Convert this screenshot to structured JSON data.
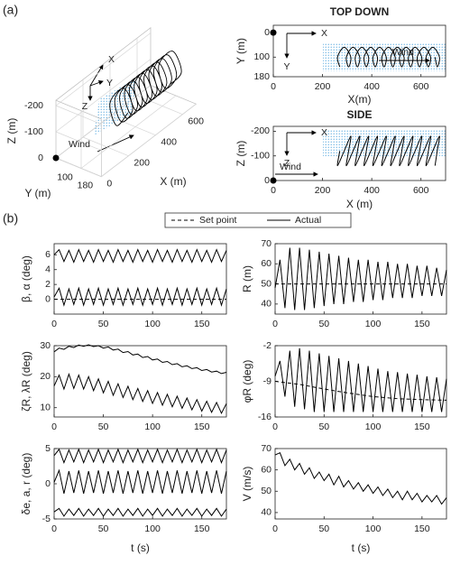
{
  "labels": [
    "(a)",
    "(b)"
  ],
  "legend": [
    {
      "name": "Set point",
      "style": "dashed"
    },
    {
      "name": "Actual",
      "style": "solid"
    }
  ],
  "chart_data": [
    {
      "type": "line3d",
      "xlabel": "X (m)",
      "ylabel": "Y (m)",
      "zlabel": "Z (m)",
      "xlim": [
        0,
        700
      ],
      "xticks": [
        0,
        200,
        400,
        600
      ],
      "ylim": [
        0,
        180
      ],
      "yticks": [
        100,
        180
      ],
      "zlim": [
        -220,
        0
      ],
      "zticks": [
        -200,
        -100,
        0
      ],
      "color": "#000000",
      "marker": [
        0,
        0,
        0
      ],
      "annotations": [
        "Wind",
        "X",
        "Y",
        "Z"
      ],
      "x": [
        270,
        261,
        288,
        315,
        306,
        297,
        324,
        351,
        342,
        333,
        360,
        387,
        378,
        369,
        396,
        423,
        414,
        405,
        432,
        459,
        450,
        441,
        468,
        495,
        486,
        477,
        504,
        531,
        522,
        513,
        540,
        567,
        558,
        549,
        576,
        603,
        594,
        585,
        612,
        639,
        630,
        621,
        648,
        675,
        666,
        657
      ],
      "y": [
        140,
        100,
        60,
        100,
        140,
        100,
        60,
        100,
        140,
        100,
        60,
        100,
        140,
        100,
        60,
        100,
        140,
        100,
        60,
        100,
        140,
        100,
        60,
        100,
        140,
        100,
        60,
        100,
        140,
        100,
        60,
        100,
        140,
        100,
        60,
        100,
        140,
        100,
        60,
        100,
        140,
        100,
        60,
        100,
        140,
        100
      ],
      "z": [
        -120,
        -60,
        -120,
        -180,
        -120,
        -60,
        -120,
        -180,
        -120,
        -60,
        -120,
        -180,
        -120,
        -60,
        -120,
        -180,
        -120,
        -60,
        -120,
        -180,
        -120,
        -60,
        -120,
        -180,
        -120,
        -60,
        -120,
        -180,
        -120,
        -60,
        -120,
        -180,
        -120,
        -60,
        -120,
        -180,
        -120,
        -60,
        -120,
        -180,
        -120,
        -60,
        -120,
        -180,
        -120,
        -60
      ]
    },
    {
      "type": "line",
      "title": "TOP DOWN",
      "xlabel": "X(m)",
      "ylabel": "Y (m)",
      "smooth": true,
      "xlim": [
        0,
        700
      ],
      "xticks": [
        0,
        200,
        400,
        600
      ],
      "ylim": [
        -30,
        180
      ],
      "yticks": [
        0,
        100,
        180
      ],
      "y_reversed": true,
      "marker": [
        0,
        0
      ],
      "annotations": [
        "Wind",
        "X",
        "Y"
      ],
      "x": [
        270,
        261,
        288,
        315,
        306,
        297,
        324,
        351,
        342,
        333,
        360,
        387,
        378,
        369,
        396,
        423,
        414,
        405,
        432,
        459,
        450,
        441,
        468,
        495,
        486,
        477,
        504,
        531,
        522,
        513,
        540,
        567,
        558,
        549,
        576,
        603,
        594,
        585,
        612,
        639,
        630,
        621,
        648,
        675,
        666,
        657
      ],
      "series": [
        {
          "style": "solid",
          "color": "#000000",
          "values": [
            140,
            100,
            60,
            100,
            140,
            100,
            60,
            100,
            140,
            100,
            60,
            100,
            140,
            100,
            60,
            100,
            140,
            100,
            60,
            100,
            140,
            100,
            60,
            100,
            140,
            100,
            60,
            100,
            140,
            100,
            60,
            100,
            140,
            100,
            60,
            100,
            140,
            100,
            60,
            100,
            140,
            100,
            60,
            100,
            140,
            100
          ]
        }
      ]
    },
    {
      "type": "line",
      "title": "SIDE",
      "xlabel": "X (m)",
      "ylabel": "Z (m)",
      "smooth": true,
      "xlim": [
        0,
        700
      ],
      "xticks": [
        0,
        200,
        400,
        600
      ],
      "ylim": [
        -220,
        0
      ],
      "yticks": [
        -200,
        -100,
        0
      ],
      "y_reversed": true,
      "marker": [
        0,
        0
      ],
      "annotations": [
        "Wind",
        "X",
        "Z"
      ],
      "x": [
        270,
        261,
        288,
        315,
        306,
        297,
        324,
        351,
        342,
        333,
        360,
        387,
        378,
        369,
        396,
        423,
        414,
        405,
        432,
        459,
        450,
        441,
        468,
        495,
        486,
        477,
        504,
        531,
        522,
        513,
        540,
        567,
        558,
        549,
        576,
        603,
        594,
        585,
        612,
        639,
        630,
        621,
        648,
        675,
        666,
        657
      ],
      "series": [
        {
          "style": "solid",
          "color": "#000000",
          "values": [
            -120,
            -60,
            -120,
            -180,
            -120,
            -60,
            -120,
            -180,
            -120,
            -60,
            -120,
            -180,
            -120,
            -60,
            -120,
            -180,
            -120,
            -60,
            -120,
            -180,
            -120,
            -60,
            -120,
            -180,
            -120,
            -60,
            -120,
            -180,
            -120,
            -60,
            -120,
            -180,
            -120,
            -60,
            -120,
            -180,
            -120,
            -60,
            -120,
            -180,
            -120,
            -60,
            -120,
            -180,
            -120,
            -60
          ]
        }
      ]
    },
    {
      "type": "line",
      "ylabel": "β, α (deg)",
      "xlim": [
        0,
        175
      ],
      "xticks": [
        0,
        50,
        100,
        150
      ],
      "ylim": [
        -2,
        7.5
      ],
      "yticks": [
        0,
        2,
        4,
        6
      ],
      "x": [
        0,
        5,
        10,
        15,
        20,
        25,
        30,
        35,
        40,
        45,
        50,
        55,
        60,
        65,
        70,
        75,
        80,
        85,
        90,
        95,
        100,
        105,
        110,
        115,
        120,
        125,
        130,
        135,
        140,
        145,
        150,
        155,
        160,
        165,
        170,
        175
      ],
      "series": [
        {
          "style": "solid",
          "color": "#000000",
          "values": [
            6.0,
            6.7,
            5.1,
            6.6,
            5.0,
            6.7,
            5.1,
            6.6,
            5.0,
            6.7,
            5.1,
            6.6,
            5.0,
            6.7,
            5.1,
            6.6,
            5.0,
            6.7,
            5.1,
            6.6,
            5.0,
            6.7,
            5.1,
            6.6,
            5.0,
            6.7,
            5.1,
            6.6,
            5.0,
            6.7,
            5.1,
            6.6,
            5.0,
            6.7,
            5.1,
            6.6
          ]
        },
        {
          "style": "solid",
          "color": "#000000",
          "values": [
            0.3,
            1.5,
            -0.8,
            1.4,
            -0.7,
            1.5,
            -0.8,
            1.4,
            -0.7,
            1.5,
            -0.8,
            1.4,
            -0.7,
            1.5,
            -0.8,
            1.4,
            -0.7,
            1.5,
            -0.8,
            1.4,
            -0.7,
            1.5,
            -0.8,
            1.4,
            -0.7,
            1.5,
            -0.8,
            1.4,
            -0.7,
            1.5,
            -0.8,
            1.4,
            -0.7,
            1.5,
            -0.8,
            1.4
          ]
        },
        {
          "style": "dashed",
          "color": "#000000",
          "x": [
            0,
            175
          ],
          "values": [
            0,
            0
          ]
        }
      ]
    },
    {
      "type": "line",
      "ylabel": "R (m)",
      "xlim": [
        0,
        175
      ],
      "xticks": [
        0,
        50,
        100,
        150
      ],
      "ylim": [
        35,
        70
      ],
      "yticks": [
        40,
        50,
        60,
        70
      ],
      "x": [
        0,
        5,
        10,
        15,
        20,
        25,
        30,
        35,
        40,
        45,
        50,
        55,
        60,
        65,
        70,
        75,
        80,
        85,
        90,
        95,
        100,
        105,
        110,
        115,
        120,
        125,
        130,
        135,
        140,
        145,
        150,
        155,
        160,
        165,
        170,
        175
      ],
      "series": [
        {
          "style": "solid",
          "color": "#000000",
          "values": [
            48,
            62,
            38,
            68,
            37,
            68,
            37,
            67,
            38,
            66,
            39,
            65,
            40,
            64,
            40,
            63,
            41,
            62,
            41,
            62,
            42,
            61,
            42,
            61,
            43,
            60,
            43,
            60,
            43,
            59,
            44,
            59,
            44,
            58,
            44,
            57
          ]
        },
        {
          "style": "dashed",
          "color": "#000000",
          "x": [
            0,
            175
          ],
          "values": [
            50,
            50
          ]
        }
      ]
    },
    {
      "type": "line",
      "ylabel": "ζR, λR (deg)",
      "xlim": [
        0,
        175
      ],
      "xticks": [
        0,
        50,
        100,
        150
      ],
      "ylim": [
        7,
        30
      ],
      "yticks": [
        10,
        20,
        30
      ],
      "x": [
        0,
        5,
        10,
        15,
        20,
        25,
        30,
        35,
        40,
        45,
        50,
        55,
        60,
        65,
        70,
        75,
        80,
        85,
        90,
        95,
        100,
        105,
        110,
        115,
        120,
        125,
        130,
        135,
        140,
        145,
        150,
        155,
        160,
        165,
        170,
        175
      ],
      "series": [
        {
          "style": "solid",
          "color": "#000000",
          "values": [
            28,
            29.2,
            28.8,
            29.8,
            29.4,
            30.2,
            29.8,
            30.3,
            29.7,
            30.0,
            29.2,
            29.6,
            28.6,
            28.9,
            27.8,
            28.1,
            27.0,
            27.3,
            26.2,
            26.5,
            25.4,
            25.7,
            24.6,
            24.9,
            23.9,
            24.2,
            23.2,
            23.5,
            22.6,
            22.9,
            22.0,
            22.3,
            21.5,
            21.8,
            21.0,
            21.4
          ]
        },
        {
          "style": "solid",
          "color": "#000000",
          "values": [
            17,
            20.5,
            16,
            20.8,
            16.2,
            20.5,
            16,
            20,
            15.5,
            19.3,
            14.8,
            18.5,
            14,
            17.7,
            13.3,
            16.9,
            12.6,
            16.2,
            12,
            15.5,
            11.4,
            14.9,
            10.8,
            14.3,
            10.3,
            13.7,
            9.8,
            13.1,
            9.3,
            12.6,
            8.9,
            12.1,
            8.5,
            11.7,
            8.2,
            11.3
          ]
        }
      ]
    },
    {
      "type": "line",
      "ylabel": "φR (deg)",
      "xlim": [
        0,
        175
      ],
      "xticks": [
        0,
        50,
        100,
        150
      ],
      "ylim": [
        -16,
        -2
      ],
      "yticks": [
        -2,
        -9,
        -16
      ],
      "x": [
        0,
        5,
        10,
        15,
        20,
        25,
        30,
        35,
        40,
        45,
        50,
        55,
        60,
        65,
        70,
        75,
        80,
        85,
        90,
        95,
        100,
        105,
        110,
        115,
        120,
        125,
        130,
        135,
        140,
        145,
        150,
        155,
        160,
        165,
        170,
        175
      ],
      "series": [
        {
          "style": "solid",
          "color": "#000000",
          "values": [
            -8,
            -5,
            -12,
            -3,
            -14,
            -2.5,
            -14.5,
            -3,
            -15,
            -3.5,
            -15,
            -4,
            -15,
            -4.5,
            -15,
            -5,
            -15,
            -5.5,
            -15,
            -6,
            -15,
            -6.5,
            -15,
            -7,
            -15,
            -7.2,
            -15,
            -7.5,
            -15,
            -7.7,
            -15,
            -8,
            -15,
            -8.2,
            -15,
            -8.5
          ]
        },
        {
          "style": "dashed",
          "color": "#000000",
          "x": [
            0,
            25,
            50,
            75,
            100,
            125,
            150,
            175
          ],
          "values": [
            -9,
            -9.6,
            -10.5,
            -11.3,
            -12,
            -12.4,
            -12.6,
            -12.7
          ]
        }
      ]
    },
    {
      "type": "line",
      "ylabel": "δe, a, r (deg)",
      "xlabel": "t (s)",
      "xlim": [
        0,
        175
      ],
      "xticks": [
        0,
        50,
        100,
        150
      ],
      "ylim": [
        -5,
        5
      ],
      "yticks": [
        -5,
        0,
        5
      ],
      "x": [
        0,
        5,
        10,
        15,
        20,
        25,
        30,
        35,
        40,
        45,
        50,
        55,
        60,
        65,
        70,
        75,
        80,
        85,
        90,
        95,
        100,
        105,
        110,
        115,
        120,
        125,
        130,
        135,
        140,
        145,
        150,
        155,
        160,
        165,
        170,
        175
      ],
      "series": [
        {
          "style": "solid",
          "color": "#000000",
          "values": [
            4.0,
            4.9,
            3.0,
            4.8,
            3.1,
            4.9,
            3.0,
            4.8,
            3.1,
            4.9,
            3.0,
            4.8,
            3.1,
            4.9,
            3.0,
            4.8,
            3.1,
            4.9,
            3.0,
            4.8,
            3.1,
            4.9,
            3.0,
            4.8,
            3.1,
            4.9,
            3.0,
            4.8,
            3.1,
            4.9,
            3.0,
            4.8,
            3.1,
            4.9,
            3.0,
            4.8
          ]
        },
        {
          "style": "solid",
          "color": "#000000",
          "values": [
            0.2,
            1.9,
            -1.4,
            1.8,
            -1.3,
            1.9,
            -1.4,
            1.8,
            -1.3,
            1.9,
            -1.4,
            1.8,
            -1.3,
            1.9,
            -1.4,
            1.8,
            -1.3,
            1.9,
            -1.4,
            1.8,
            -1.3,
            1.9,
            -1.4,
            1.8,
            -1.3,
            1.9,
            -1.4,
            1.8,
            -1.3,
            1.9,
            -1.4,
            1.8,
            -1.3,
            1.9,
            -1.4,
            1.8
          ]
        },
        {
          "style": "solid",
          "color": "#000000",
          "values": [
            -4.0,
            -3.5,
            -4.6,
            -3.6,
            -4.5,
            -3.5,
            -4.6,
            -3.6,
            -4.5,
            -3.5,
            -4.6,
            -3.6,
            -4.5,
            -3.5,
            -4.6,
            -3.6,
            -4.5,
            -3.5,
            -4.6,
            -3.6,
            -4.5,
            -3.5,
            -4.6,
            -3.6,
            -4.5,
            -3.5,
            -4.6,
            -3.6,
            -4.5,
            -3.5,
            -4.6,
            -3.6,
            -4.5,
            -3.5,
            -4.6,
            -3.6
          ]
        }
      ]
    },
    {
      "type": "line",
      "ylabel": "V (m/s)",
      "xlabel": "t (s)",
      "xlim": [
        0,
        175
      ],
      "xticks": [
        0,
        50,
        100,
        150
      ],
      "ylim": [
        37,
        70
      ],
      "yticks": [
        40,
        50,
        60,
        70
      ],
      "x": [
        0,
        5,
        10,
        15,
        20,
        25,
        30,
        35,
        40,
        45,
        50,
        55,
        60,
        65,
        70,
        75,
        80,
        85,
        90,
        95,
        100,
        105,
        110,
        115,
        120,
        125,
        130,
        135,
        140,
        145,
        150,
        155,
        160,
        165,
        170,
        175
      ],
      "series": [
        {
          "style": "solid",
          "color": "#000000",
          "values": [
            67,
            68,
            62,
            65,
            60,
            63,
            58,
            61,
            56,
            59,
            55,
            58,
            53,
            57,
            52,
            55,
            51,
            54,
            50,
            53,
            49,
            52,
            48,
            51,
            47,
            50,
            46,
            50,
            46,
            49,
            45,
            48,
            45,
            48,
            44,
            47
          ]
        }
      ]
    }
  ]
}
